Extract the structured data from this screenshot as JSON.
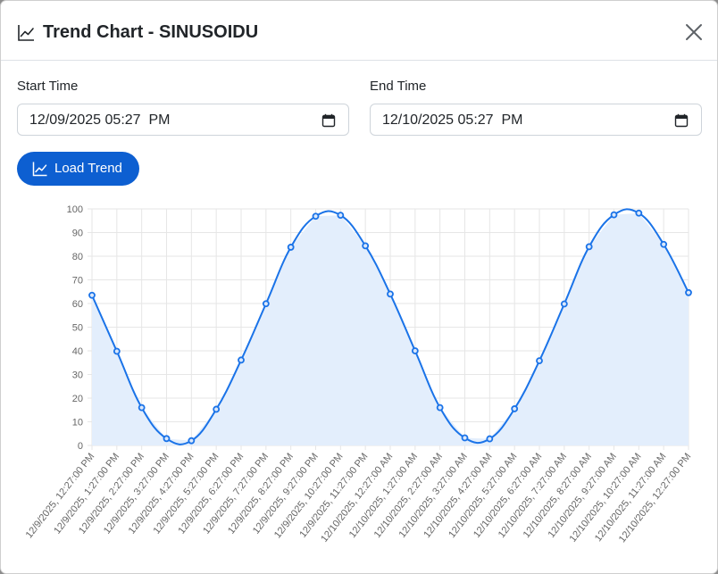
{
  "modal": {
    "title": "Trend Chart - SINUSOIDU",
    "close_label": "×"
  },
  "form": {
    "start_label": "Start Time",
    "start_value": "12/09/2025 05:27  PM",
    "end_label": "End Time",
    "end_value": "12/10/2025 05:27  PM",
    "load_label": "Load Trend"
  },
  "colors": {
    "line": "#1a73e8",
    "fill": "#e3eefc",
    "button": "#0d5fd1"
  },
  "chart_data": {
    "type": "area",
    "title": "",
    "xlabel": "",
    "ylabel": "",
    "ylim": [
      0,
      100
    ],
    "yticks": [
      0,
      10,
      20,
      30,
      40,
      50,
      60,
      70,
      80,
      90,
      100
    ],
    "grid": true,
    "categories": [
      "12/9/2025, 12:27:00 PM",
      "12/9/2025, 1:27:00 PM",
      "12/9/2025, 2:27:00 PM",
      "12/9/2025, 3:27:00 PM",
      "12/9/2025, 4:27:00 PM",
      "12/9/2025, 5:27:00 PM",
      "12/9/2025, 6:27:00 PM",
      "12/9/2025, 7:27:00 PM",
      "12/9/2025, 8:27:00 PM",
      "12/9/2025, 9:27:00 PM",
      "12/9/2025, 10:27:00 PM",
      "12/9/2025, 11:27:00 PM",
      "12/10/2025, 12:27:00 AM",
      "12/10/2025, 1:27:00 AM",
      "12/10/2025, 2:27:00 AM",
      "12/10/2025, 3:27:00 AM",
      "12/10/2025, 4:27:00 AM",
      "12/10/2025, 5:27:00 AM",
      "12/10/2025, 6:27:00 AM",
      "12/10/2025, 7:27:00 AM",
      "12/10/2025, 8:27:00 AM",
      "12/10/2025, 9:27:00 AM",
      "12/10/2025, 10:27:00 AM",
      "12/10/2025, 11:27:00 AM",
      "12/10/2025, 12:27:00 PM"
    ],
    "values": [
      63.5,
      39.8,
      16.0,
      2.9,
      2.0,
      15.3,
      36.1,
      59.9,
      83.8,
      96.9,
      97.3,
      84.4,
      64.0,
      40.0,
      16.0,
      3.2,
      2.8,
      15.5,
      35.8,
      59.8,
      84.0,
      97.5,
      98.2,
      85.0,
      64.6
    ]
  }
}
